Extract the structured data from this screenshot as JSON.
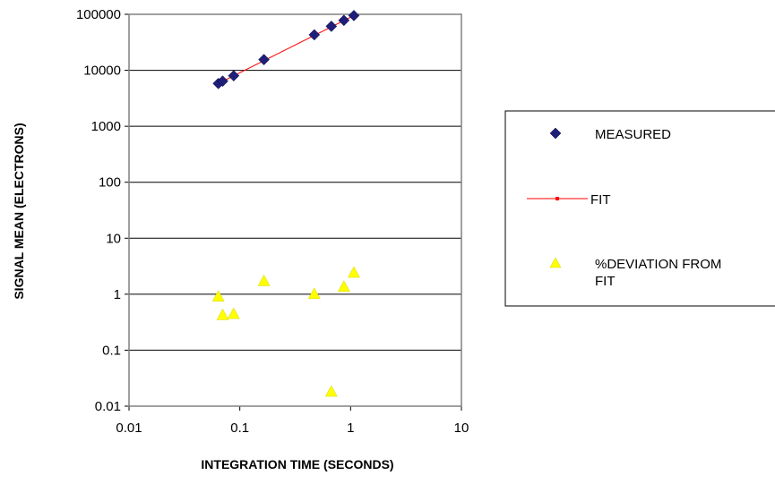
{
  "chart_data": {
    "type": "scatter",
    "title": "",
    "xlabel": "INTEGRATION TIME (SECONDS)",
    "ylabel": "SIGNAL MEAN (ELECTRONS)",
    "x_scale": "log",
    "y_scale": "log",
    "xlim": [
      0.01,
      10
    ],
    "ylim": [
      0.01,
      100000
    ],
    "x_ticks": [
      "0.01",
      "0.1",
      "1",
      "10"
    ],
    "y_ticks": [
      "0.01",
      "0.1",
      "1",
      "10",
      "100",
      "1000",
      "10000",
      "100000"
    ],
    "grid": "horizontal",
    "legend_position": "right",
    "series": [
      {
        "name": "MEASURED",
        "marker": "diamond",
        "color": "#1f1f7a",
        "points": [
          {
            "x": 0.064,
            "y": 5800
          },
          {
            "x": 0.07,
            "y": 6400
          },
          {
            "x": 0.088,
            "y": 8000
          },
          {
            "x": 0.165,
            "y": 15500
          },
          {
            "x": 0.47,
            "y": 43000
          },
          {
            "x": 0.67,
            "y": 61000
          },
          {
            "x": 0.87,
            "y": 78000
          },
          {
            "x": 1.07,
            "y": 95000
          }
        ]
      },
      {
        "name": "FIT",
        "marker": "line",
        "color": "#ff0000",
        "points": [
          {
            "x": 0.064,
            "y": 5800
          },
          {
            "x": 1.07,
            "y": 95000
          }
        ]
      },
      {
        "name": "%DEVIATION FROM FIT",
        "marker": "triangle",
        "color": "#ffff00",
        "points": [
          {
            "x": 0.064,
            "y": 0.9
          },
          {
            "x": 0.07,
            "y": 0.42
          },
          {
            "x": 0.088,
            "y": 0.44
          },
          {
            "x": 0.165,
            "y": 1.7
          },
          {
            "x": 0.47,
            "y": 1.0
          },
          {
            "x": 0.67,
            "y": 0.018
          },
          {
            "x": 0.87,
            "y": 1.35
          },
          {
            "x": 1.07,
            "y": 2.4
          }
        ]
      }
    ]
  }
}
